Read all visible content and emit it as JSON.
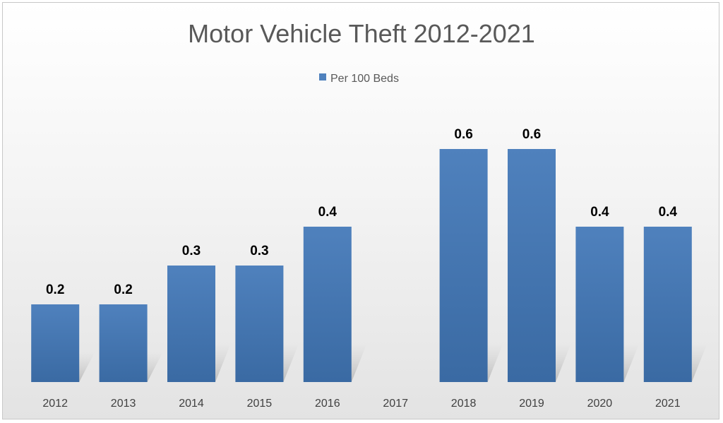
{
  "chart_data": {
    "type": "bar",
    "title": "Motor Vehicle Theft 2012-2021",
    "categories": [
      "2012",
      "2013",
      "2014",
      "2015",
      "2016",
      "2017",
      "2018",
      "2019",
      "2020",
      "2021"
    ],
    "series": [
      {
        "name": "Per 100 Beds",
        "values": [
          0.2,
          0.2,
          0.3,
          0.3,
          0.4,
          null,
          0.6,
          0.6,
          0.4,
          0.4
        ],
        "data_labels": [
          "0.2",
          "0.2",
          "0.3",
          "0.3",
          "0.4",
          "",
          "0.6",
          "0.6",
          "0.4",
          "0.4"
        ],
        "color": "#4f81bd"
      }
    ],
    "ylim": [
      0,
      0.7
    ],
    "grid": false,
    "legend_position": "top"
  }
}
